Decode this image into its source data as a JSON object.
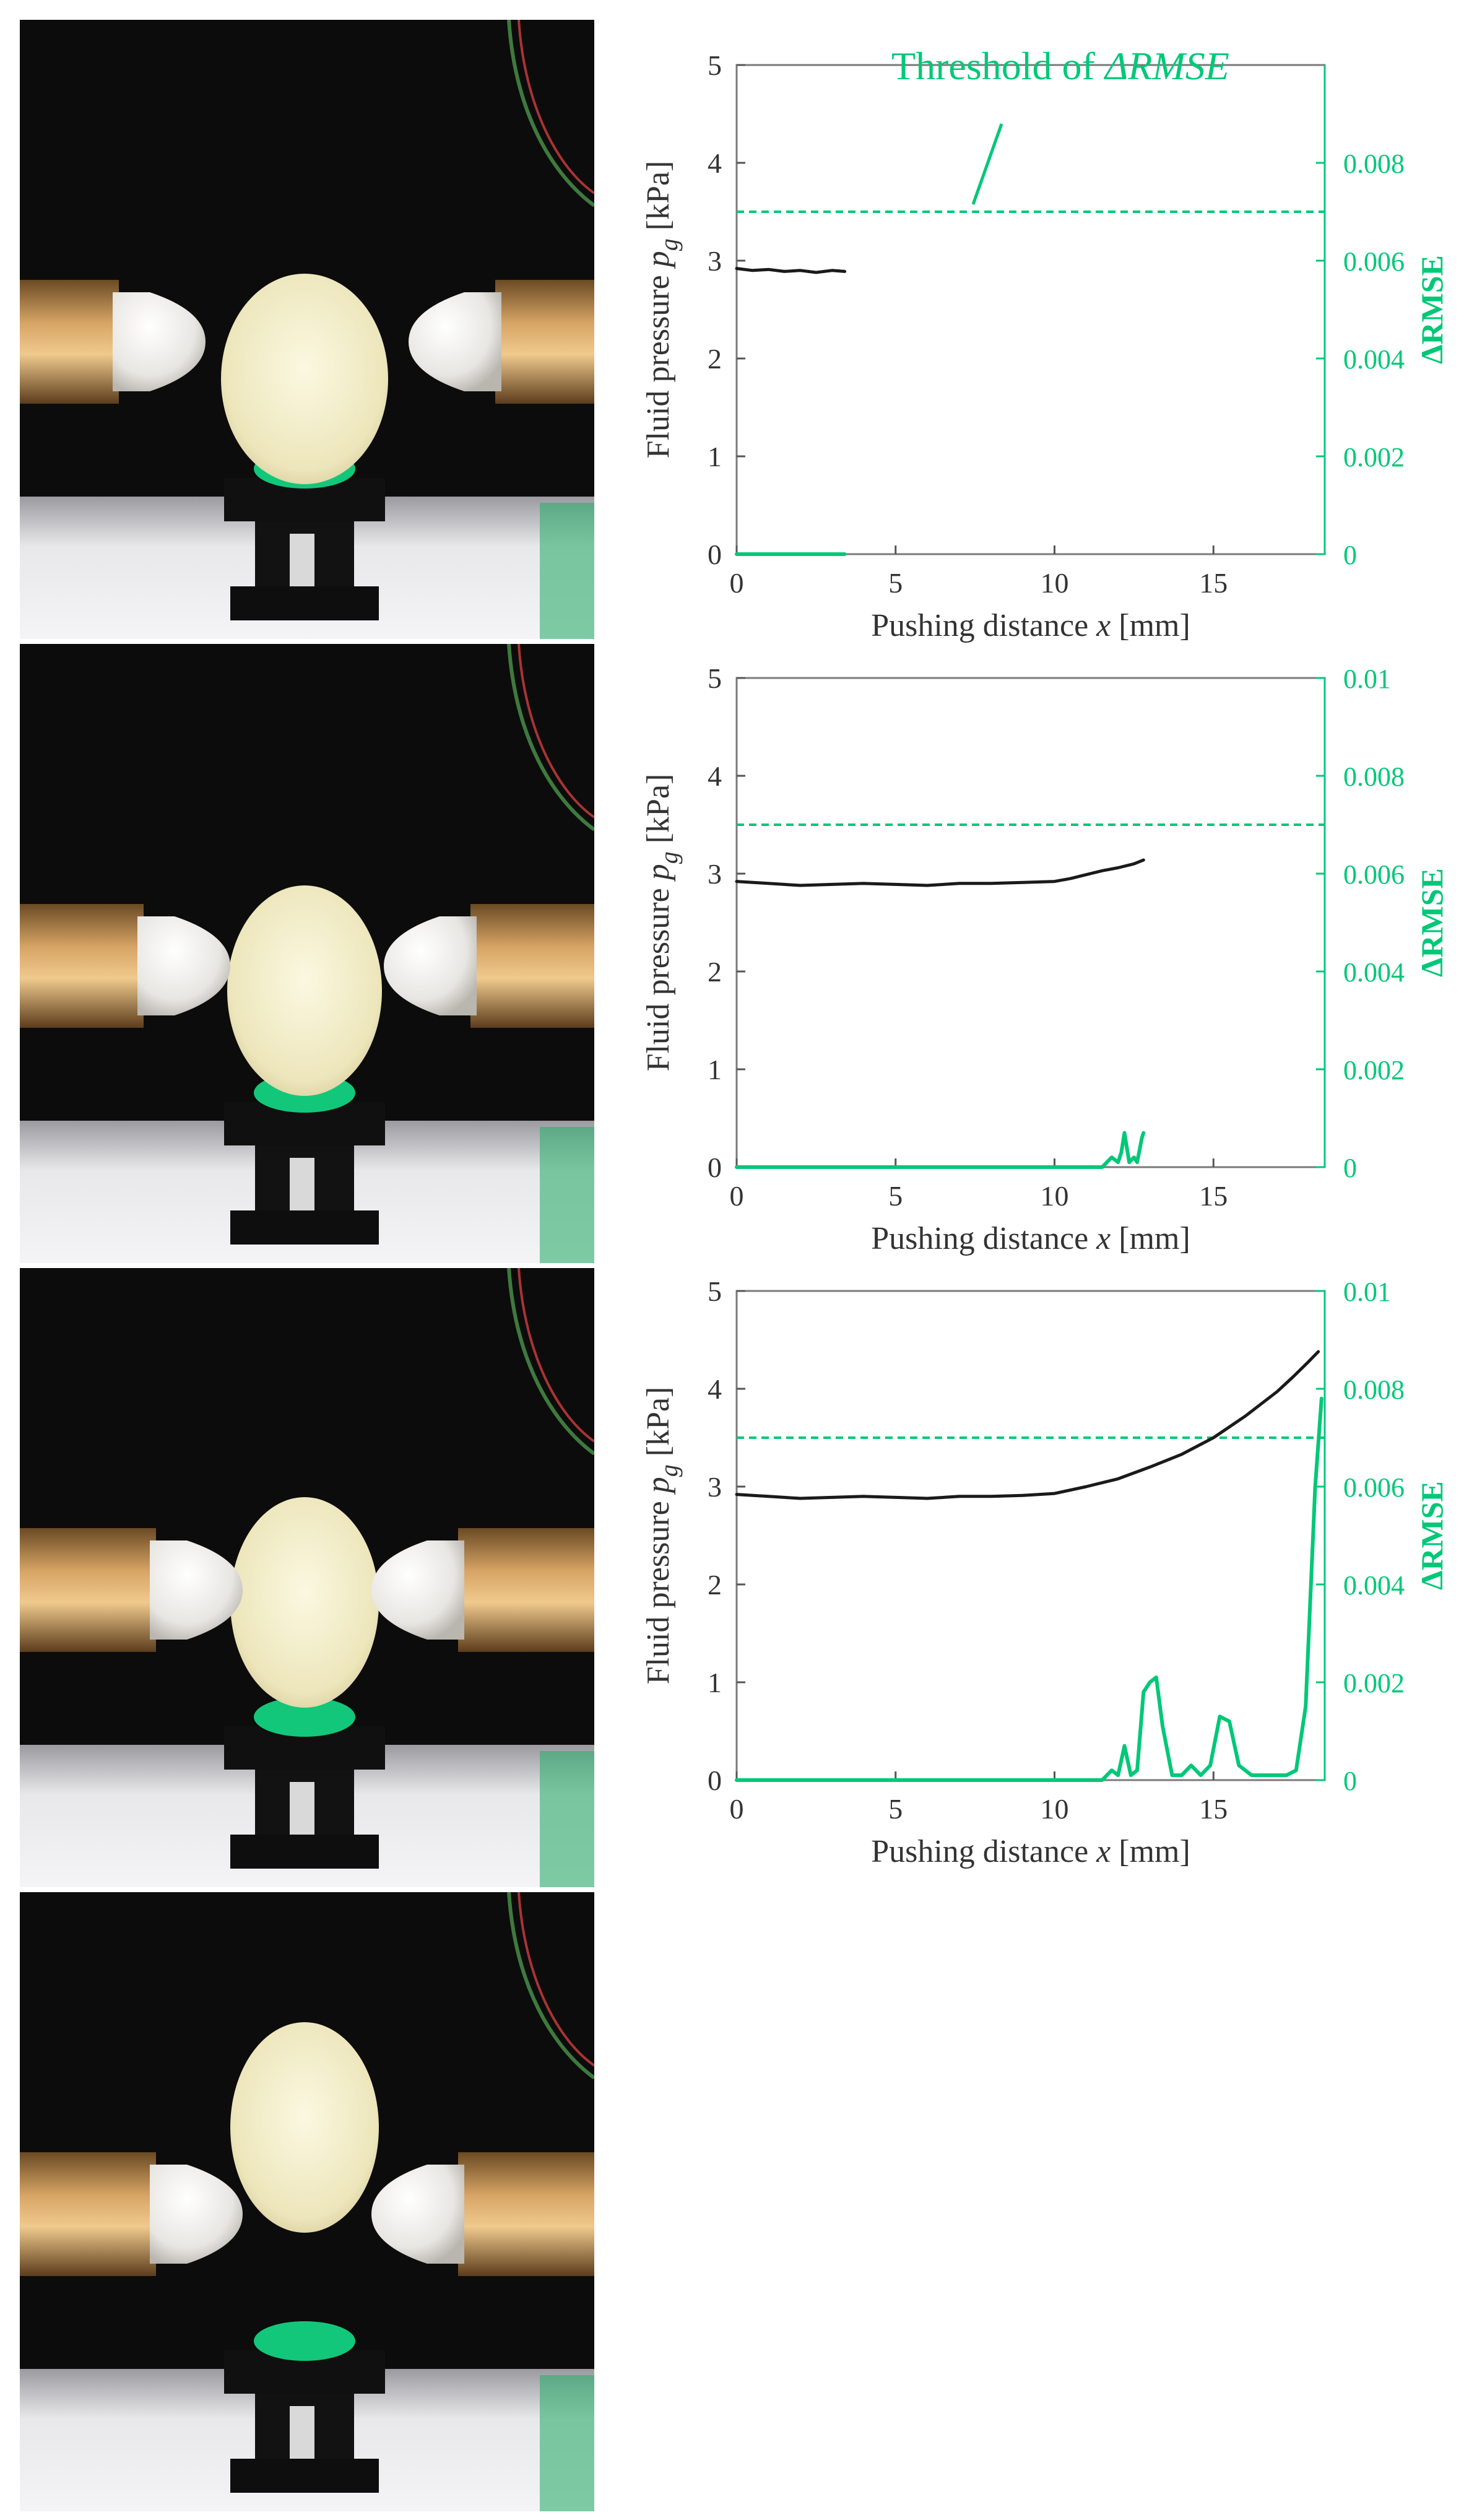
{
  "annotation": {
    "text": "Threshold of ",
    "symbol": "ΔRMSE",
    "color": "#00c878"
  },
  "colors": {
    "pressure": "#1a1a1a",
    "rmse": "#00c878",
    "threshold": "#00c878"
  },
  "chart_data": [
    {
      "type": "line",
      "xlabel_prefix": "Pushing distance ",
      "xlabel_var": "x",
      "xlabel_unit": " [mm]",
      "ylabel_prefix": "Fluid pressure ",
      "ylabel_var": "p",
      "ylabel_sub": "g",
      "ylabel_unit": " [kPa]",
      "y2label": "ΔRMSE",
      "xlim": [
        0,
        18.5
      ],
      "ylim": [
        0,
        5
      ],
      "y2lim": [
        0,
        0.01
      ],
      "xticks": [
        "0",
        "5",
        "10",
        "15"
      ],
      "yticks": [
        "0",
        "1",
        "2",
        "3",
        "4",
        "5"
      ],
      "y2ticks": [
        "0",
        "0.002",
        "0.004",
        "0.006",
        "0.008",
        ""
      ],
      "threshold": 0.007,
      "series": [
        {
          "axis": "left",
          "x": [
            0,
            0.5,
            1,
            1.5,
            2,
            2.5,
            3,
            3.4
          ],
          "values": [
            2.92,
            2.9,
            2.91,
            2.89,
            2.9,
            2.88,
            2.9,
            2.89
          ]
        },
        {
          "axis": "right",
          "x": [
            0,
            1,
            2,
            3,
            3.4
          ],
          "values": [
            0,
            0,
            0,
            0,
            0
          ]
        }
      ]
    },
    {
      "type": "line",
      "xlabel_prefix": "Pushing distance ",
      "xlabel_var": "x",
      "xlabel_unit": " [mm]",
      "ylabel_prefix": "Fluid pressure ",
      "ylabel_var": "p",
      "ylabel_sub": "g",
      "ylabel_unit": " [kPa]",
      "y2label": "ΔRMSE",
      "xlim": [
        0,
        18.5
      ],
      "ylim": [
        0,
        5
      ],
      "y2lim": [
        0,
        0.01
      ],
      "xticks": [
        "0",
        "5",
        "10",
        "15"
      ],
      "yticks": [
        "0",
        "1",
        "2",
        "3",
        "4",
        "5"
      ],
      "y2ticks": [
        "0",
        "0.002",
        "0.004",
        "0.006",
        "0.008",
        "0.01"
      ],
      "threshold": 0.007,
      "series": [
        {
          "axis": "left",
          "x": [
            0,
            1,
            2,
            3,
            4,
            5,
            6,
            7,
            8,
            9,
            10,
            10.5,
            11,
            11.5,
            12,
            12.5,
            12.8
          ],
          "values": [
            2.92,
            2.9,
            2.88,
            2.89,
            2.9,
            2.89,
            2.88,
            2.9,
            2.9,
            2.91,
            2.92,
            2.95,
            2.99,
            3.03,
            3.06,
            3.1,
            3.14
          ]
        },
        {
          "axis": "right",
          "x": [
            0,
            5,
            10,
            11.5,
            11.8,
            12.0,
            12.1,
            12.2,
            12.35,
            12.5,
            12.6,
            12.75,
            12.8
          ],
          "values": [
            0,
            0,
            0,
            0,
            0.0002,
            0.0001,
            0.0003,
            0.0007,
            0.0001,
            0.0002,
            0.0001,
            0.0006,
            0.0007
          ]
        }
      ]
    },
    {
      "type": "line",
      "xlabel_prefix": "Pushing distance ",
      "xlabel_var": "x",
      "xlabel_unit": " [mm]",
      "ylabel_prefix": "Fluid pressure ",
      "ylabel_var": "p",
      "ylabel_sub": "g",
      "ylabel_unit": " [kPa]",
      "y2label": "ΔRMSE",
      "xlim": [
        0,
        18.5
      ],
      "ylim": [
        0,
        5
      ],
      "y2lim": [
        0,
        0.01
      ],
      "xticks": [
        "0",
        "5",
        "10",
        "15"
      ],
      "yticks": [
        "0",
        "1",
        "2",
        "3",
        "4",
        "5"
      ],
      "y2ticks": [
        "0",
        "0.002",
        "0.004",
        "0.006",
        "0.008",
        "0.01"
      ],
      "threshold": 0.007,
      "series": [
        {
          "axis": "left",
          "x": [
            0,
            1,
            2,
            3,
            4,
            5,
            6,
            7,
            8,
            9,
            10,
            11,
            12,
            13,
            14,
            15,
            16,
            17,
            17.5,
            18,
            18.3
          ],
          "values": [
            2.92,
            2.9,
            2.88,
            2.89,
            2.9,
            2.89,
            2.88,
            2.9,
            2.9,
            2.91,
            2.93,
            3.0,
            3.08,
            3.2,
            3.33,
            3.5,
            3.72,
            3.97,
            4.12,
            4.28,
            4.38
          ]
        },
        {
          "axis": "right",
          "x": [
            0,
            5,
            10,
            11.5,
            11.8,
            12.0,
            12.2,
            12.4,
            12.6,
            12.8,
            13.0,
            13.2,
            13.4,
            13.7,
            14.0,
            14.3,
            14.6,
            14.9,
            15.2,
            15.5,
            15.8,
            16.2,
            16.6,
            17.0,
            17.3,
            17.6,
            17.9,
            18.2,
            18.4
          ],
          "values": [
            0,
            0,
            0,
            0,
            0.0002,
            0.0001,
            0.0007,
            0.0001,
            0.0002,
            0.0018,
            0.002,
            0.0021,
            0.0011,
            0.0001,
            0.0001,
            0.0003,
            0.0001,
            0.0003,
            0.0013,
            0.0012,
            0.0003,
            0.0001,
            0.0001,
            0.0001,
            0.0001,
            0.0002,
            0.0015,
            0.006,
            0.0078
          ]
        }
      ]
    }
  ]
}
